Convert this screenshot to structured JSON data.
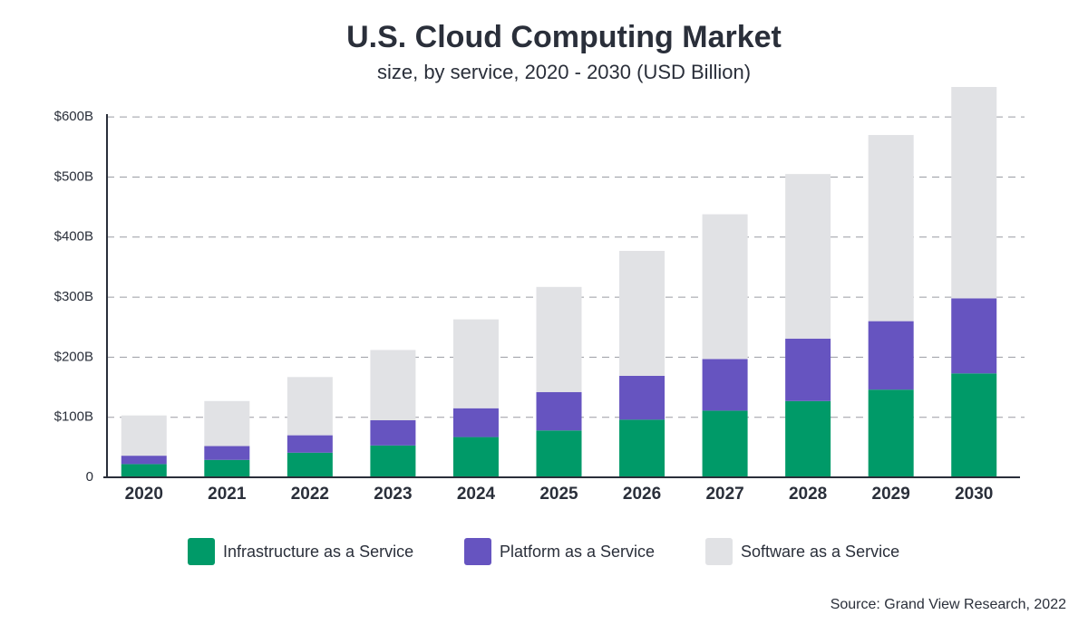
{
  "chart_data": {
    "type": "stacked_bar",
    "title": "U.S. Cloud Computing Market",
    "subtitle": "size, by service, 2020 - 2030 (USD Billion)",
    "source": "Source: Grand View Research, 2022",
    "categories": [
      "2020",
      "2021",
      "2022",
      "2023",
      "2024",
      "2025",
      "2026",
      "2027",
      "2028",
      "2029",
      "2030"
    ],
    "series": [
      {
        "name": "Infrastructure as a Service",
        "color": "#009a68",
        "values": [
          22,
          29,
          41,
          53,
          67,
          78,
          96,
          111,
          127,
          146,
          173
        ]
      },
      {
        "name": "Platform as a Service",
        "color": "#6654c0",
        "values": [
          14,
          23,
          29,
          42,
          48,
          64,
          73,
          86,
          104,
          114,
          125
        ]
      },
      {
        "name": "Software as a Service",
        "color": "#e1e2e5",
        "values": [
          67,
          75,
          97,
          117,
          148,
          175,
          208,
          241,
          274,
          310,
          352
        ]
      }
    ],
    "ylim": [
      0,
      650
    ],
    "yticks": [
      0,
      {
        "value": 100,
        "label": "$100B"
      },
      {
        "value": 200,
        "label": "$200B"
      },
      {
        "value": 300,
        "label": "$300B"
      },
      {
        "value": 400,
        "label": "$400B"
      },
      {
        "value": 500,
        "label": "$500B"
      },
      {
        "value": 600,
        "label": "$600B"
      }
    ],
    "grid": true
  }
}
